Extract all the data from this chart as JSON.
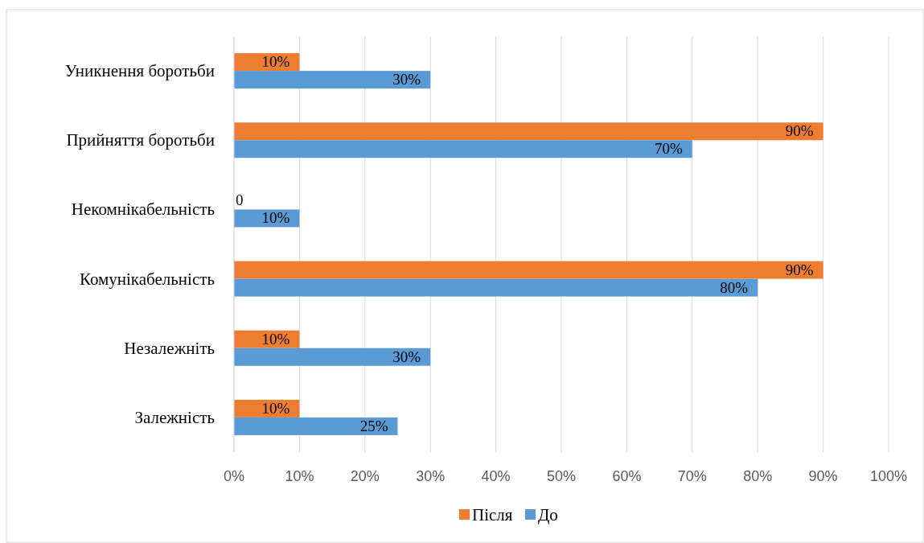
{
  "chart_data": {
    "type": "bar",
    "orientation": "horizontal",
    "categories": [
      "Уникнення боротьби",
      "Прийняття боротьби",
      "Некомнікабельність",
      "Комунікабельність",
      "Незалежніть",
      "Залежність"
    ],
    "series": [
      {
        "name": "Після",
        "color": "#ed7d31",
        "values": [
          10,
          90,
          0,
          90,
          10,
          10
        ],
        "value_labels": [
          "10%",
          "90%",
          "0",
          "90%",
          "10%",
          "10%"
        ]
      },
      {
        "name": "До",
        "color": "#5b9bd5",
        "values": [
          30,
          70,
          10,
          80,
          30,
          25
        ],
        "value_labels": [
          "30%",
          "70%",
          "10%",
          "80%",
          "30%",
          "25%"
        ]
      }
    ],
    "xlim": [
      0,
      100
    ],
    "xticks": [
      {
        "value": 0,
        "label": "0%"
      },
      {
        "value": 10,
        "label": "10%"
      },
      {
        "value": 20,
        "label": "20%"
      },
      {
        "value": 30,
        "label": "30%"
      },
      {
        "value": 40,
        "label": "40%"
      },
      {
        "value": 50,
        "label": "50%"
      },
      {
        "value": 60,
        "label": "60%"
      },
      {
        "value": 70,
        "label": "70%"
      },
      {
        "value": 80,
        "label": "80%"
      },
      {
        "value": 90,
        "label": "90%"
      },
      {
        "value": 100,
        "label": "100%"
      }
    ],
    "grid": "x",
    "legend": "bottom"
  }
}
